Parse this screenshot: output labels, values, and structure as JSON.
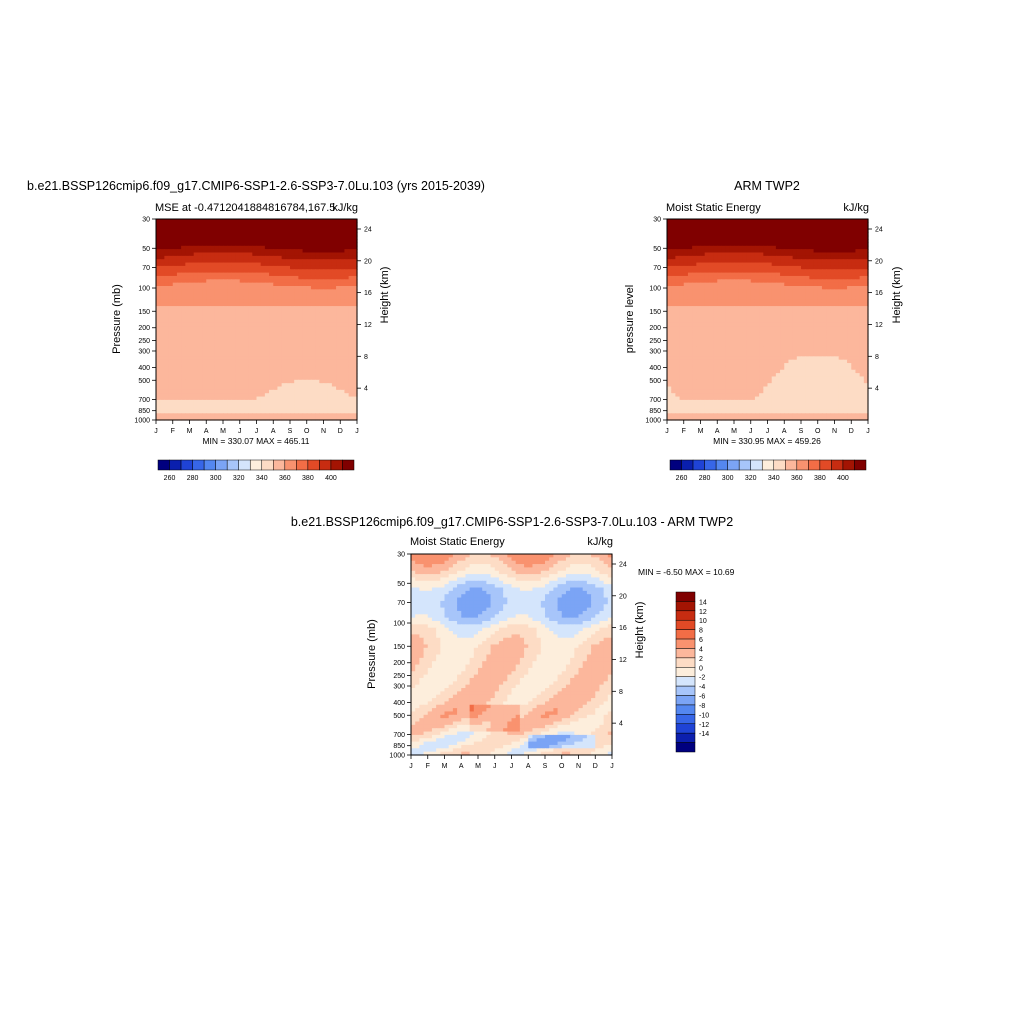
{
  "colors": {
    "seq": [
      "#00007f",
      "#0a1fae",
      "#1f43d6",
      "#3766e8",
      "#5487f0",
      "#7ba4f5",
      "#a7c5fa",
      "#d4e5fc",
      "#fdeedc",
      "#fddcc5",
      "#fcb79c",
      "#f9926f",
      "#f26d46",
      "#e24a26",
      "#c72c11",
      "#a31403",
      "#800000"
    ],
    "diff": [
      "#00007f",
      "#0c1fae",
      "#1f43d6",
      "#3766e8",
      "#5487f0",
      "#7ba4f5",
      "#a7c5fa",
      "#d4e5fc",
      "#fdeedc",
      "#fddcc5",
      "#fcb79c",
      "#f9926f",
      "#f26d46",
      "#e24a26",
      "#c72c11",
      "#a31403",
      "#800000"
    ]
  },
  "chart_data": [
    {
      "type": "heatmap",
      "title": "b.e21.BSSP126cmip6.f09_g17.CMIP6-SSP1-2.6-SSP3-7.0Lu.103 (yrs 2015-2039)",
      "subtitle_left": "MSE at -0.4712041884816784,167.5",
      "subtitle_right": "kJ/kg",
      "ylabel": "Pressure (mb)",
      "y2label": "Height (km)",
      "y_ticks": [
        "30",
        "50",
        "70",
        "100",
        "150",
        "200",
        "250",
        "300",
        "400",
        "500",
        "700",
        "850",
        "1000"
      ],
      "y_tick_values": [
        30,
        50,
        70,
        100,
        150,
        200,
        250,
        300,
        400,
        500,
        700,
        850,
        1000
      ],
      "y2_ticks": [
        "24",
        "20",
        "16",
        "12",
        "8",
        "4"
      ],
      "x_ticks": [
        "J",
        "F",
        "M",
        "A",
        "M",
        "J",
        "J",
        "A",
        "S",
        "O",
        "N",
        "D",
        "J"
      ],
      "stats": "MIN = 330.07 MAX = 465.11",
      "min": 330.07,
      "max": 465.11,
      "colorbar_labels": [
        "260",
        "280",
        "300",
        "320",
        "340",
        "360",
        "380",
        "400"
      ],
      "colorbar_levels": [
        250,
        260,
        270,
        280,
        290,
        300,
        310,
        320,
        330,
        340,
        350,
        360,
        370,
        380,
        390,
        400
      ],
      "field_profile": [
        {
          "p": 30,
          "v": 465
        },
        {
          "p": 45,
          "v": 410
        },
        {
          "p": 55,
          "v": 395
        },
        {
          "p": 70,
          "v": 380
        },
        {
          "p": 85,
          "v": 368
        },
        {
          "p": 100,
          "v": 358
        },
        {
          "p": 140,
          "v": 350
        },
        {
          "p": 250,
          "v": 347
        },
        {
          "p": 500,
          "v": 343
        },
        {
          "p": 850,
          "v": 338
        },
        {
          "p": 1000,
          "v": 345
        }
      ]
    },
    {
      "type": "heatmap",
      "title": "ARM TWP2",
      "subtitle_left": "Moist Static Energy",
      "subtitle_right": "kJ/kg",
      "ylabel": "pressure level",
      "y2label": "Height (km)",
      "y_ticks": [
        "30",
        "50",
        "70",
        "100",
        "150",
        "200",
        "250",
        "300",
        "400",
        "500",
        "700",
        "850",
        "1000"
      ],
      "y_tick_values": [
        30,
        50,
        70,
        100,
        150,
        200,
        250,
        300,
        400,
        500,
        700,
        850,
        1000
      ],
      "y2_ticks": [
        "24",
        "20",
        "16",
        "12",
        "8",
        "4"
      ],
      "x_ticks": [
        "J",
        "F",
        "M",
        "A",
        "M",
        "J",
        "J",
        "A",
        "S",
        "O",
        "N",
        "D",
        "J"
      ],
      "stats": "MIN = 330.95 MAX = 459.26",
      "min": 330.95,
      "max": 459.26,
      "colorbar_labels": [
        "260",
        "280",
        "300",
        "320",
        "340",
        "360",
        "380",
        "400"
      ],
      "colorbar_levels": [
        250,
        260,
        270,
        280,
        290,
        300,
        310,
        320,
        330,
        340,
        350,
        360,
        370,
        380,
        390,
        400
      ],
      "field_profile": [
        {
          "p": 30,
          "v": 459
        },
        {
          "p": 45,
          "v": 410
        },
        {
          "p": 55,
          "v": 395
        },
        {
          "p": 70,
          "v": 380
        },
        {
          "p": 85,
          "v": 368
        },
        {
          "p": 100,
          "v": 358
        },
        {
          "p": 140,
          "v": 350
        },
        {
          "p": 250,
          "v": 347
        },
        {
          "p": 350,
          "v": 342
        },
        {
          "p": 850,
          "v": 338
        },
        {
          "p": 1000,
          "v": 345
        }
      ]
    },
    {
      "type": "heatmap",
      "title": "b.e21.BSSP126cmip6.f09_g17.CMIP6-SSP1-2.6-SSP3-7.0Lu.103 - ARM TWP2",
      "subtitle_left": "Moist Static Energy",
      "subtitle_right": "kJ/kg",
      "ylabel": "Pressure (mb)",
      "y2label": "Height (km)",
      "y_ticks": [
        "30",
        "50",
        "70",
        "100",
        "150",
        "200",
        "250",
        "300",
        "400",
        "500",
        "700",
        "850",
        "1000"
      ],
      "y_tick_values": [
        30,
        50,
        70,
        100,
        150,
        200,
        250,
        300,
        400,
        500,
        700,
        850,
        1000
      ],
      "y2_ticks": [
        "24",
        "20",
        "16",
        "12",
        "8",
        "4"
      ],
      "x_ticks": [
        "J",
        "F",
        "M",
        "A",
        "M",
        "J",
        "J",
        "A",
        "S",
        "O",
        "N",
        "D",
        "J"
      ],
      "stats": "MIN =  -6.50 MAX =  10.69",
      "min": -6.5,
      "max": 10.69,
      "colorbar_labels": [
        "14",
        "12",
        "10",
        "8",
        "6",
        "4",
        "2",
        "0",
        "-2",
        "-4",
        "-6",
        "-8",
        "-10",
        "-12",
        "-14"
      ],
      "colorbar_levels": [
        -14,
        -12,
        -10,
        -8,
        -6,
        -4,
        -2,
        0,
        2,
        4,
        6,
        8,
        10,
        12,
        14
      ],
      "field_profile": [
        {
          "p": 30,
          "v": 6
        },
        {
          "p": 40,
          "v": 3
        },
        {
          "p": 55,
          "v": -2
        },
        {
          "p": 70,
          "v": -3
        },
        {
          "p": 90,
          "v": -2
        },
        {
          "p": 110,
          "v": 1
        },
        {
          "p": 150,
          "v": 3
        },
        {
          "p": 300,
          "v": 3
        },
        {
          "p": 500,
          "v": 4
        },
        {
          "p": 800,
          "v": 1
        },
        {
          "p": 1000,
          "v": 2
        }
      ]
    }
  ]
}
